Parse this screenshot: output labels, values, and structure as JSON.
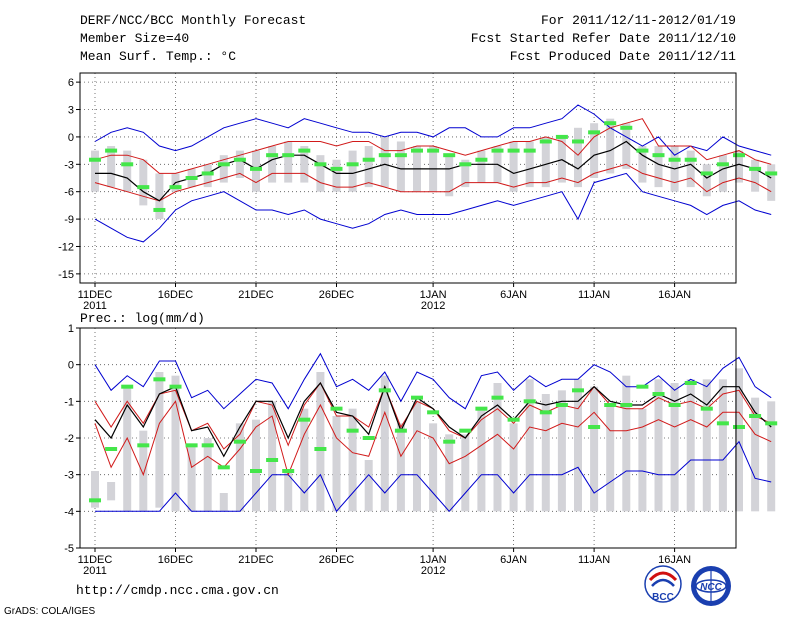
{
  "header": {
    "title": "DERF/NCC/BCC Monthly Forecast",
    "member_size": "Member Size=40",
    "variable": "Mean Surf. Temp.: °C",
    "period": "For 2011/12/11-2012/01/19",
    "started": "Fcst Started Refer Date 2011/12/10",
    "produced": "Fcst Produced Date 2011/12/11"
  },
  "footer": {
    "url": "http://cmdp.ncc.cma.gov.cn",
    "credit": "GrADS: COLA/IGES",
    "logo_bcc": "BCC",
    "logo_ncc": "NCC"
  },
  "colors": {
    "box": "#d3d3d8",
    "mean": "#000000",
    "sd": "#d11a1a",
    "range": "#0000d0",
    "median": "#44e64a",
    "grid": "#555555"
  },
  "chart_data": [
    {
      "type": "box",
      "title": "Mean Surf. Temp.: °C",
      "xlabel": "",
      "ylabel": "°C",
      "ylim": [
        -16,
        7
      ],
      "yticks": [
        6,
        3,
        0,
        -3,
        -6,
        -9,
        -12,
        -15
      ],
      "grid": true,
      "x_tick_labels": [
        {
          "day": 1,
          "label": "11DEC",
          "sub": "2011"
        },
        {
          "day": 6,
          "label": "16DEC",
          "sub": ""
        },
        {
          "day": 11,
          "label": "21DEC",
          "sub": ""
        },
        {
          "day": 16,
          "label": "26DEC",
          "sub": ""
        },
        {
          "day": 22,
          "label": "1JAN",
          "sub": "2012"
        },
        {
          "day": 27,
          "label": "6JAN",
          "sub": ""
        },
        {
          "day": 32,
          "label": "11JAN",
          "sub": ""
        },
        {
          "day": 37,
          "label": "16JAN",
          "sub": ""
        }
      ],
      "series": {
        "max": [
          -0.5,
          0.5,
          1,
          0.5,
          -1,
          -1.5,
          -1,
          0,
          1,
          1.5,
          2,
          1.5,
          1,
          2,
          1.5,
          1,
          0.5,
          0.5,
          0,
          0.5,
          0.5,
          0,
          1,
          1,
          0,
          0,
          1,
          1,
          1.5,
          2,
          3.5,
          2.5,
          1,
          0,
          -1,
          0,
          -2,
          -1,
          -1.5,
          0,
          -1,
          -1.5,
          -2
        ],
        "sd_upper": [
          -2.5,
          -2,
          -2,
          -2.5,
          -4,
          -4,
          -3.5,
          -3,
          -2.5,
          -2,
          -1.5,
          -1,
          -0.5,
          -0.5,
          -0.5,
          -1,
          -0.5,
          -0.5,
          -1.5,
          -1.5,
          -1,
          -1,
          -1.5,
          -2,
          -1.5,
          -1,
          -0.5,
          -0.5,
          0,
          -0.5,
          -2,
          0,
          1,
          1.5,
          2,
          -1,
          -1,
          -1,
          -2.5,
          -2,
          -1.5,
          -2.5,
          -3
        ],
        "mean": [
          -4,
          -4,
          -4.5,
          -6,
          -7,
          -5,
          -4.5,
          -4,
          -3,
          -2.5,
          -3.5,
          -2.5,
          -2,
          -2,
          -3,
          -4,
          -4,
          -3.5,
          -3,
          -3.5,
          -3.5,
          -3.5,
          -3.5,
          -3,
          -3,
          -3,
          -4,
          -3.5,
          -3,
          -2.5,
          -3.5,
          -2,
          -1.5,
          -0.5,
          -2,
          -3,
          -3.5,
          -3,
          -4.5,
          -3.5,
          -3,
          -3.5,
          -4.5
        ],
        "sd_lower": [
          -5,
          -5.5,
          -6,
          -6.5,
          -7,
          -6,
          -5.5,
          -5,
          -4.5,
          -4,
          -5,
          -4,
          -4,
          -4,
          -5,
          -5.5,
          -5.5,
          -5,
          -5.5,
          -6,
          -6,
          -6,
          -6,
          -5,
          -5,
          -5,
          -5.5,
          -5,
          -5,
          -4.5,
          -5,
          -4,
          -3.5,
          -3,
          -4,
          -4.5,
          -5,
          -4.5,
          -6,
          -5,
          -4.5,
          -5,
          -6
        ],
        "min": [
          -9,
          -10,
          -11,
          -11.5,
          -10,
          -8,
          -7,
          -6.5,
          -6,
          -7,
          -8,
          -8,
          -8.5,
          -8,
          -9,
          -9.5,
          -10,
          -9.5,
          -8.5,
          -8,
          -8.5,
          -8.5,
          -8.5,
          -8,
          -7.5,
          -7,
          -7.5,
          -7,
          -6.5,
          -6,
          -9,
          -5,
          -4.5,
          -4,
          -6,
          -6.5,
          -7,
          -7.5,
          -8.5,
          -7.5,
          -7,
          -8,
          -8.5
        ],
        "box_high": [
          -1.5,
          -1,
          -1.5,
          -2.5,
          -4,
          -4,
          -3.5,
          -3,
          -2,
          -1.5,
          -1.5,
          -1,
          -0.5,
          -1,
          -2,
          -2.5,
          -1.5,
          -1,
          0,
          -0.5,
          -1,
          -1,
          -2,
          -2.5,
          -1.5,
          -1,
          -0.5,
          -0.5,
          0,
          0,
          1,
          1.5,
          2,
          1.5,
          -1,
          -1,
          -1,
          -1.5,
          -3,
          -2,
          -1.5,
          -2.5,
          -3
        ],
        "box_low": [
          -6,
          -5.5,
          -6,
          -7.5,
          -9,
          -6,
          -5.5,
          -5.5,
          -5,
          -4.5,
          -6,
          -5,
          -5,
          -5,
          -6,
          -6,
          -6,
          -5.5,
          -5.5,
          -6,
          -6,
          -6,
          -6.5,
          -5.5,
          -5,
          -5,
          -6,
          -5.5,
          -5.5,
          -5,
          -5.5,
          -4.5,
          -4,
          -3.5,
          -5,
          -5.5,
          -6,
          -5.5,
          -6.5,
          -6,
          -5,
          -6,
          -7
        ],
        "median": [
          -2.5,
          -1.5,
          -3,
          -5.5,
          -8,
          -5.5,
          -4.5,
          -4,
          -3,
          -2.5,
          -3.5,
          -2,
          -2,
          -1.5,
          -3,
          -3.5,
          -3,
          -2.5,
          -2,
          -2,
          -1.5,
          -1.5,
          -2,
          -3,
          -2.5,
          -1.5,
          -1.5,
          -1.5,
          -0.5,
          0,
          -0.5,
          0.5,
          1.5,
          1,
          -1.5,
          -2,
          -2.5,
          -2.5,
          -4,
          -3,
          -2,
          -3.5,
          -4
        ]
      }
    },
    {
      "type": "box",
      "title": "Prec.: log(mm/d)",
      "xlabel": "",
      "ylabel": "log(mm/d)",
      "ylim": [
        -5,
        1
      ],
      "yticks": [
        1,
        0,
        -1,
        -2,
        -3,
        -4,
        -5
      ],
      "grid": true,
      "x_tick_labels": [
        {
          "day": 1,
          "label": "11DEC",
          "sub": "2011"
        },
        {
          "day": 6,
          "label": "16DEC",
          "sub": ""
        },
        {
          "day": 11,
          "label": "21DEC",
          "sub": ""
        },
        {
          "day": 16,
          "label": "26DEC",
          "sub": ""
        },
        {
          "day": 22,
          "label": "1JAN",
          "sub": "2012"
        },
        {
          "day": 27,
          "label": "6JAN",
          "sub": ""
        },
        {
          "day": 32,
          "label": "11JAN",
          "sub": ""
        },
        {
          "day": 37,
          "label": "16JAN",
          "sub": ""
        }
      ],
      "series": {
        "max": [
          0,
          -0.7,
          -0.3,
          -0.6,
          0.1,
          0.1,
          -0.9,
          -0.7,
          -1.2,
          -0.8,
          -0.4,
          -0.5,
          -1.2,
          -0.4,
          0.3,
          -0.6,
          -0.4,
          -0.7,
          -0.2,
          -1.0,
          -0.2,
          -0.4,
          -0.9,
          -1.2,
          -0.3,
          -0.2,
          -0.7,
          -0.3,
          -0.6,
          -0.4,
          -0.4,
          0,
          -0.2,
          -0.6,
          -0.6,
          -0.3,
          -0.7,
          -0.4,
          -0.6,
          -0.1,
          0.2,
          -0.6,
          -0.9
        ],
        "sd_upper": [
          -1,
          -1.7,
          -1,
          -1.6,
          -0.8,
          -0.7,
          -1.8,
          -1.6,
          -2.3,
          -1.9,
          -1,
          -1.1,
          -2.2,
          -1.1,
          -0.5,
          -1.4,
          -1.4,
          -1.7,
          -0.6,
          -1.7,
          -1,
          -1.2,
          -1.8,
          -2.0,
          -1.5,
          -1.2,
          -1.6,
          -1.1,
          -1.3,
          -1.1,
          -1.2,
          -0.6,
          -1.1,
          -1.2,
          -1.2,
          -0.9,
          -1.1,
          -1.0,
          -1.2,
          -0.8,
          -0.7,
          -1.4,
          -1.6
        ],
        "mean": [
          -1.5,
          -2.0,
          -1.1,
          -1.7,
          -0.8,
          -0.6,
          -1.8,
          -1.7,
          -2.5,
          -1.7,
          -1.0,
          -1.0,
          -2.0,
          -1.0,
          -0.5,
          -1.3,
          -1.4,
          -1.9,
          -0.6,
          -1.8,
          -0.9,
          -1.2,
          -1.7,
          -2.0,
          -1.4,
          -1.1,
          -1.5,
          -1.0,
          -1.1,
          -1.0,
          -1.0,
          -0.6,
          -1.0,
          -1.1,
          -1.1,
          -0.8,
          -1.0,
          -0.8,
          -1.1,
          -0.6,
          -0.6,
          -1.3,
          -1.7
        ],
        "sd_lower": [
          -1.6,
          -2.8,
          -2.0,
          -3.0,
          -1.6,
          -1.0,
          -2.8,
          -2.5,
          -2.8,
          -2.3,
          -1.7,
          -1.4,
          -3.0,
          -1.9,
          -1.1,
          -2.0,
          -2.4,
          -2.5,
          -1.3,
          -2.5,
          -1.8,
          -2.0,
          -2.7,
          -2.5,
          -2.2,
          -1.9,
          -2.3,
          -1.7,
          -1.8,
          -1.6,
          -1.7,
          -1.3,
          -1.8,
          -1.8,
          -1.7,
          -1.5,
          -1.7,
          -1.5,
          -1.7,
          -1.3,
          -1.3,
          -1.9,
          -2.1
        ],
        "min": [
          -4,
          -4,
          -4,
          -4,
          -4,
          -3.5,
          -4,
          -4,
          -4,
          -4,
          -3.5,
          -3.0,
          -3.0,
          -3.5,
          -3.0,
          -4,
          -3.5,
          -3.0,
          -3.5,
          -3.0,
          -3.0,
          -3.5,
          -4,
          -3.5,
          -3.0,
          -3.0,
          -3.5,
          -3.0,
          -3.0,
          -3.0,
          -2.8,
          -3.5,
          -3.2,
          -2.9,
          -2.9,
          -3.0,
          -3.0,
          -2.6,
          -2.6,
          -2.6,
          -2.1,
          -3.1,
          -3.2
        ],
        "box_high": [
          -2.9,
          -3.2,
          -0.6,
          -1.8,
          -0.2,
          -0.3,
          -2.2,
          -2.0,
          -3.5,
          -1.6,
          -1.5,
          -1.0,
          -2.9,
          -1.2,
          -0.2,
          -1.4,
          -1.2,
          -2.6,
          -0.3,
          -1.6,
          -1.0,
          -1.6,
          -1.9,
          -1.9,
          -1.2,
          -0.5,
          -1.6,
          -0.4,
          -0.8,
          -0.7,
          -0.4,
          -0.6,
          -1.1,
          -0.3,
          -1.2,
          -0.4,
          -0.5,
          -0.4,
          -0.4,
          -0.4,
          -0.1,
          -0.9,
          -1.0
        ],
        "box_low": [
          -3.9,
          -3.7,
          -4.0,
          -4.0,
          -3.9,
          -4.0,
          -4.0,
          -4.0,
          -4.0,
          -4.0,
          -4.0,
          -4.0,
          -4.0,
          -4.0,
          -4.0,
          -4.0,
          -4.0,
          -4.0,
          -4.0,
          -4.0,
          -4.0,
          -4.0,
          -4.0,
          -4.0,
          -4.0,
          -4.0,
          -4.0,
          -4.0,
          -4.0,
          -4.0,
          -4.0,
          -4.0,
          -4.0,
          -4.0,
          -4.0,
          -4.0,
          -4.0,
          -4.0,
          -4.0,
          -4.0,
          -4.0,
          -4.0,
          -4.0
        ],
        "median": [
          -3.7,
          -2.3,
          -0.6,
          -2.2,
          -0.4,
          -0.6,
          -2.2,
          -2.2,
          -2.8,
          -2.1,
          -2.9,
          -2.6,
          -2.9,
          -1.5,
          -2.3,
          -1.2,
          -1.8,
          -2.0,
          -0.7,
          -1.8,
          -0.9,
          -1.3,
          -2.1,
          -1.8,
          -1.2,
          -0.9,
          -1.5,
          -1.0,
          -1.3,
          -1.1,
          -0.7,
          -1.7,
          -1.1,
          -1.1,
          -0.6,
          -0.8,
          -1.1,
          -0.5,
          -1.2,
          -1.6,
          -1.7,
          -1.4,
          -1.6
        ]
      }
    }
  ]
}
